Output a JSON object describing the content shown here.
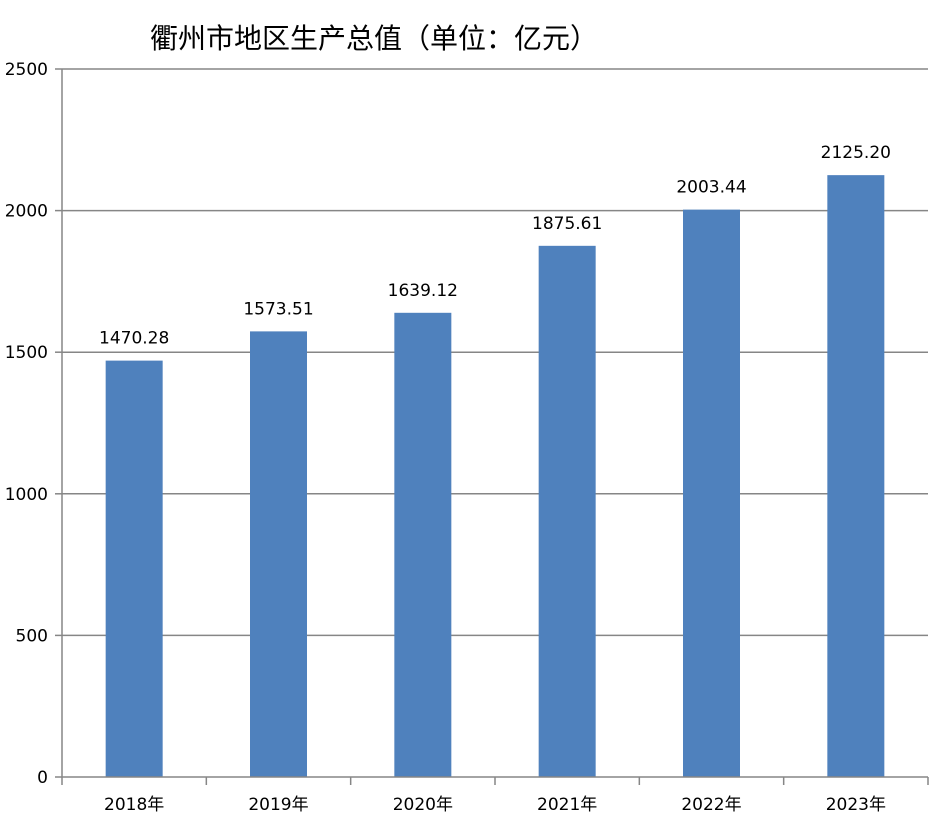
{
  "chart_data": {
    "type": "bar",
    "title": "衢州市地区生产总值（单位：亿元）",
    "xlabel": "",
    "ylabel": "",
    "categories": [
      "2018年",
      "2019年",
      "2020年",
      "2021年",
      "2022年",
      "2023年"
    ],
    "values": [
      1470.28,
      1573.51,
      1639.12,
      1875.61,
      2003.44,
      2125.2
    ],
    "value_labels": [
      "1470.28",
      "1573.51",
      "1639.12",
      "1875.61",
      "2003.44",
      "2125.20"
    ],
    "ylim": [
      0,
      2500
    ],
    "yticks": [
      0,
      500,
      1000,
      1500,
      2000,
      2500
    ],
    "grid": true,
    "legend": "none",
    "colors": {
      "bar": "#4f81bd",
      "grid": "#868686",
      "axis": "#868686"
    }
  }
}
